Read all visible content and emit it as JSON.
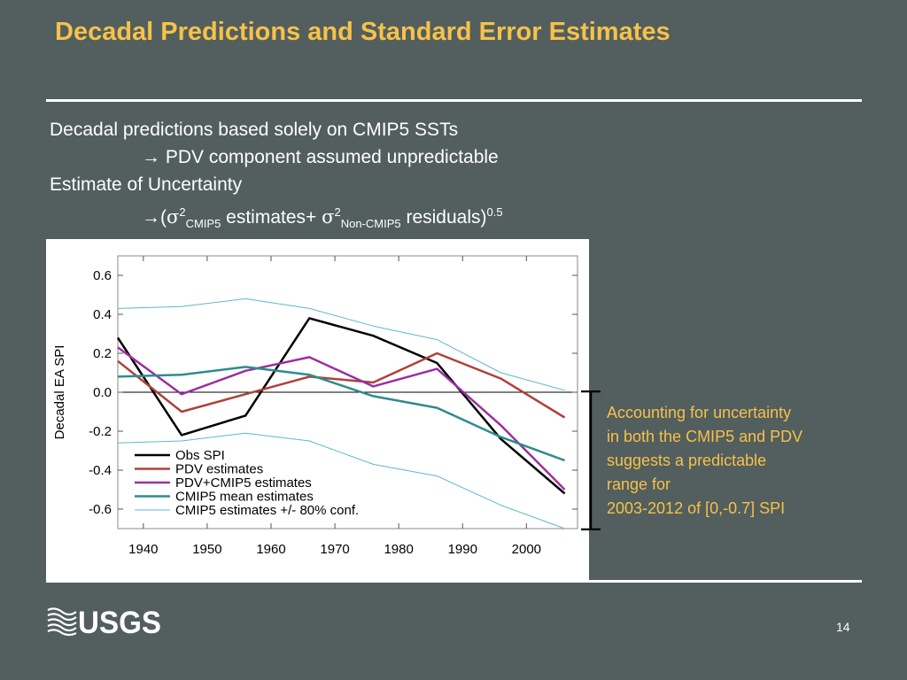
{
  "slide": {
    "title": "Decadal Predictions and Standard Error Estimates",
    "bullet1": "Decadal predictions based solely on CMIP5 SSTs",
    "bullet1_sub": "PDV component assumed unpredictable",
    "bullet2": "Estimate of Uncertainty",
    "formula": {
      "open": "(",
      "sigma1": "σ",
      "sq1": "2",
      "sub1": "CMIP5",
      "mid": " estimates+ ",
      "sigma2": "σ",
      "sq2": "2",
      "sub2": "Non-CMIP5",
      "end": " residuals)",
      "exp": "0.5"
    },
    "side_note_lines": [
      "Accounting for uncertainty",
      "in both the CMIP5 and PDV",
      "suggests a predictable",
      "range for",
      "2003-2012 of [0,-0.7] SPI"
    ],
    "logo_text": "USGS",
    "page_number": "14",
    "colors": {
      "title": "#F5C24A",
      "background": "#535E5E",
      "note": "#F5C24A"
    }
  },
  "chart_data": {
    "type": "line",
    "ylabel": "Decadal EA SPI",
    "xlabel": "",
    "xlim": [
      1936,
      2008
    ],
    "ylim": [
      -0.7,
      0.7
    ],
    "x_ticks": [
      1940,
      1950,
      1960,
      1970,
      1980,
      1990,
      2000
    ],
    "y_ticks": [
      0.6,
      0.4,
      0.2,
      0.0,
      -0.2,
      -0.4,
      -0.6
    ],
    "y_tick_labels": [
      "0.6",
      "0.4",
      "0.2",
      "0.0",
      "-0.2",
      "-0.4",
      "-0.6"
    ],
    "x": [
      1936,
      1946,
      1956,
      1966,
      1976,
      1986,
      1996,
      2006
    ],
    "zero_line": true,
    "legend_position": "bottom-left",
    "series": [
      {
        "name": "Obs SPI",
        "color": "#000000",
        "width": 2.5,
        "values": [
          0.28,
          -0.22,
          -0.12,
          0.38,
          0.29,
          0.15,
          -0.24,
          -0.52
        ]
      },
      {
        "name": "PDV estimates",
        "color": "#B0403A",
        "width": 2.5,
        "values": [
          0.16,
          -0.1,
          -0.01,
          0.08,
          0.05,
          0.2,
          0.07,
          -0.13
        ]
      },
      {
        "name": "PDV+CMIP5 estimates",
        "color": "#9B2FA0",
        "width": 2.5,
        "values": [
          0.23,
          -0.01,
          0.11,
          0.18,
          0.03,
          0.12,
          -0.17,
          -0.5
        ]
      },
      {
        "name": "CMIP5 mean estimates",
        "color": "#2E8C8C",
        "width": 2.5,
        "values": [
          0.08,
          0.09,
          0.13,
          0.09,
          -0.02,
          -0.08,
          -0.23,
          -0.35
        ]
      },
      {
        "name": "CMIP5 estimates +/- 80% conf.",
        "color": "#5FB8C9",
        "width": 1,
        "values": [
          0.43,
          0.44,
          0.48,
          0.43,
          0.34,
          0.27,
          0.1,
          0.01
        ]
      },
      {
        "name": "",
        "legend": false,
        "color": "#5FB8C9",
        "width": 1,
        "values": [
          -0.26,
          -0.25,
          -0.21,
          -0.25,
          -0.37,
          -0.43,
          -0.58,
          -0.7
        ]
      }
    ]
  }
}
